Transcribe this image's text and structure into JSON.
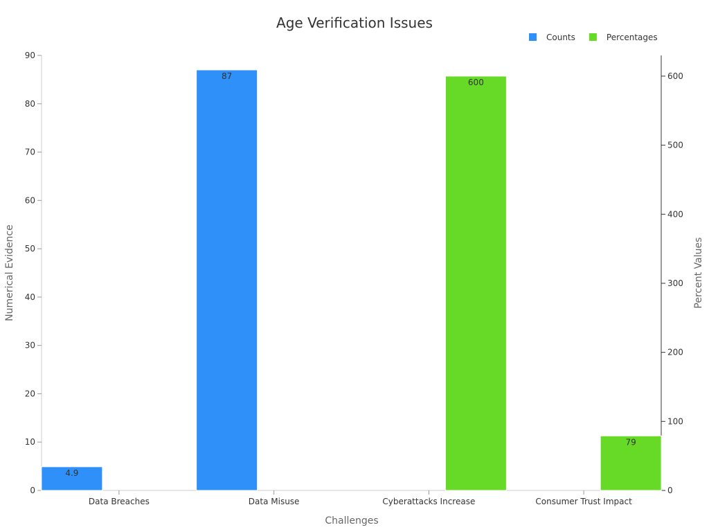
{
  "chart_data": {
    "type": "bar",
    "title": "Age Verification Issues",
    "xlabel": "Challenges",
    "ylabel_left": "Numerical Evidence",
    "ylabel_right": "Percent Values",
    "categories": [
      "Data Breaches",
      "Data Misuse",
      "Cyberattacks Increase",
      "Consumer Trust Impact"
    ],
    "ylim_left": [
      0,
      90
    ],
    "ylim_right": [
      0,
      630
    ],
    "yticks_left": [
      0,
      10,
      20,
      30,
      40,
      50,
      60,
      70,
      80,
      90
    ],
    "yticks_right": [
      0,
      100,
      200,
      300,
      400,
      500,
      600
    ],
    "legend_position": "top-right",
    "grid": false,
    "series": [
      {
        "name": "Counts",
        "axis": "left",
        "color": "#2E90F8",
        "values": [
          4.9,
          87,
          null,
          null
        ],
        "labels": [
          "4.9",
          "87",
          "",
          ""
        ]
      },
      {
        "name": "Percentages",
        "axis": "right",
        "color": "#66DA26",
        "values": [
          null,
          null,
          600,
          79
        ],
        "labels": [
          "",
          "",
          "600",
          "79"
        ]
      }
    ]
  }
}
